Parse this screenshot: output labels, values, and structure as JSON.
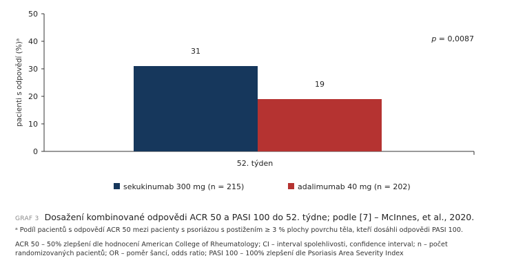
{
  "colors": {
    "series1": "#16375c",
    "series2": "#b53331",
    "axis": "#333333"
  },
  "chart_data": {
    "type": "bar",
    "categories": [
      "52. týden"
    ],
    "series": [
      {
        "name": "sekukinumab 300 mg (n = 215)",
        "values": [
          31
        ],
        "label": "31"
      },
      {
        "name": "adalimumab 40 mg (n = 202)",
        "values": [
          19
        ],
        "label": "19"
      }
    ],
    "ylabel": "pacienti s odpovědí (%)ᵃ",
    "ylim": [
      0,
      50
    ],
    "yticks": [
      "0",
      "10",
      "20",
      "30",
      "40",
      "50"
    ],
    "annotation": {
      "p_symbol": "p",
      "text": " = 0,0087"
    },
    "legend_position": "bottom",
    "grid": false
  },
  "caption": {
    "label": "GRAF 3",
    "title": "Dosažení kombinované odpovědi ACR 50 a PASI 100 do 52. týdne; podle [7] – McInnes, et al., 2020.",
    "note": "ᵃ Podíl pacientů s odpovědí ACR 50 mezi pacienty s psoriázou s postižením ≥ 3 % plochy povrchu těla, kteří dosáhli odpovědi PASI 100.",
    "abbreviations": "ACR 50 – 50% zlepšení dle hodnocení American College of Rheumatology; CI – interval spolehlivosti, confidence interval; n – počet randomizovaných pacientů; OR – poměr šancí, odds ratio; PASI 100 – 100% zlepšení dle Psoriasis Area Severity Index"
  }
}
